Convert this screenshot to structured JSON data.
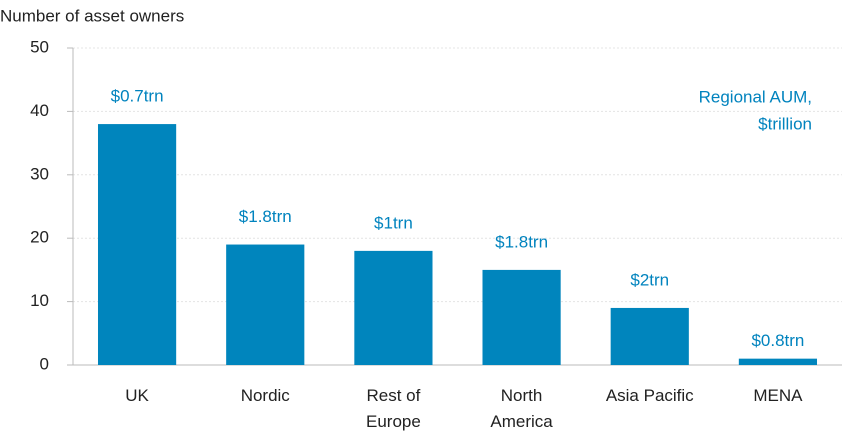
{
  "chart_data": {
    "type": "bar",
    "y_axis_label": "Number of asset owners",
    "categories": [
      "UK",
      "Nordic",
      "Rest of Europe",
      "North America",
      "Asia Pacific",
      "MENA"
    ],
    "values": [
      38,
      19,
      18,
      15,
      9,
      1
    ],
    "aum_labels": [
      "$0.7trn",
      "$1.8trn",
      "$1trn",
      "$1.8trn",
      "$2trn",
      "$0.8trn"
    ],
    "annotation": [
      "Regional AUM,",
      "$trillion"
    ],
    "color": "#0085bd",
    "label_color": "#0083be",
    "ylim": [
      0,
      50
    ],
    "yticks": [
      0,
      10,
      20,
      30,
      40,
      50
    ],
    "grid": true
  }
}
